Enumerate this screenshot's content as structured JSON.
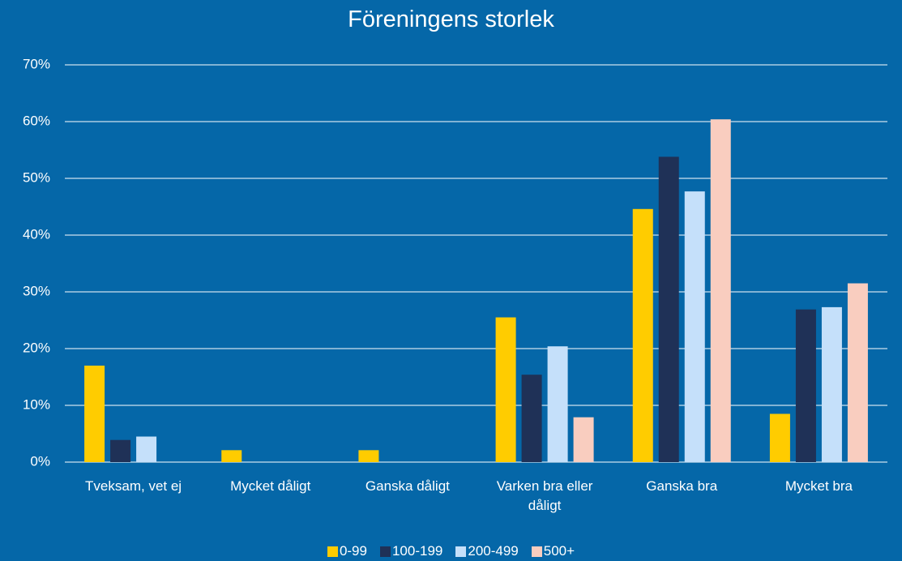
{
  "chart_data": {
    "type": "bar",
    "title": "Föreningens storlek",
    "categories": [
      "Tveksam, vet ej",
      "Mycket dåligt",
      "Ganska dåligt",
      "Varken bra eller dåligt",
      "Ganska bra",
      "Mycket bra"
    ],
    "series": [
      {
        "name": "0-99",
        "color": "#FFCC00",
        "values": [
          17.0,
          2.1,
          2.1,
          25.5,
          44.6,
          8.5
        ]
      },
      {
        "name": "100-199",
        "color": "#1F3157",
        "values": [
          3.9,
          0,
          0,
          15.4,
          53.8,
          26.9
        ]
      },
      {
        "name": "200-499",
        "color": "#C5E0FA",
        "values": [
          4.5,
          0,
          0,
          20.4,
          47.7,
          27.3
        ]
      },
      {
        "name": "500+",
        "color": "#F9CDBF",
        "values": [
          0,
          0,
          0,
          7.9,
          60.4,
          31.5
        ]
      }
    ],
    "ylim": [
      0,
      70
    ],
    "yticks": [
      {
        "value": 0,
        "label": "0%"
      },
      {
        "value": 10,
        "label": "10%"
      },
      {
        "value": 20,
        "label": "20%"
      },
      {
        "value": 30,
        "label": "30%"
      },
      {
        "value": 40,
        "label": "40%"
      },
      {
        "value": 50,
        "label": "50%"
      },
      {
        "value": 60,
        "label": "60%"
      },
      {
        "value": 70,
        "label": "70%"
      }
    ],
    "grid": true,
    "legend": "bottom"
  }
}
